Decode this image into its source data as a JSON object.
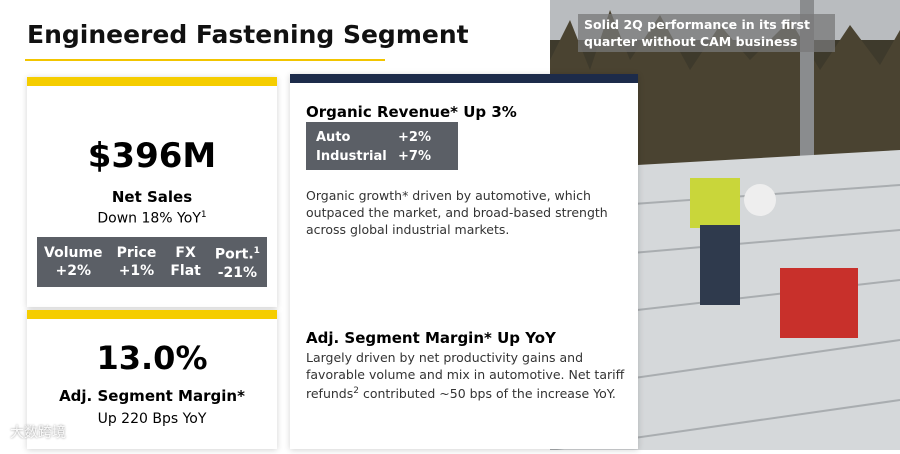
{
  "header": {
    "title": "Engineered Fastening Segment"
  },
  "net_sales": {
    "value": "$396M",
    "label": "Net Sales",
    "change": "Down 18% YoY",
    "change_note": "1",
    "table": {
      "columns": [
        {
          "name": "Volume",
          "value": "+2%",
          "note": ""
        },
        {
          "name": "Price",
          "value": "+1%",
          "note": ""
        },
        {
          "name": "FX",
          "value": "Flat",
          "note": ""
        },
        {
          "name": "Port.",
          "value": "-21%",
          "note": "1"
        }
      ]
    }
  },
  "margin": {
    "value": "13.0%",
    "label": "Adj. Segment Margin*",
    "change": "Up 220 Bps YoY"
  },
  "organic": {
    "title": "Organic Revenue* Up 3%",
    "rows": [
      [
        "Auto",
        "+2%"
      ],
      [
        "Industrial",
        "+7%"
      ]
    ],
    "text": "Organic growth* driven by automotive, which outpaced the market, and broad-based strength across global industrial markets."
  },
  "segment_margin": {
    "title": "Adj. Segment Margin* Up YoY",
    "text_before": "Largely driven by net productivity gains and favorable volume and mix in automotive. Net tariff refunds",
    "note": "2",
    "text_after": " contributed ~50 bps of the increase YoY."
  },
  "photo": {
    "caption": "Solid 2Q performance in its first quarter without CAM business"
  },
  "watermark": "大数跨境"
}
